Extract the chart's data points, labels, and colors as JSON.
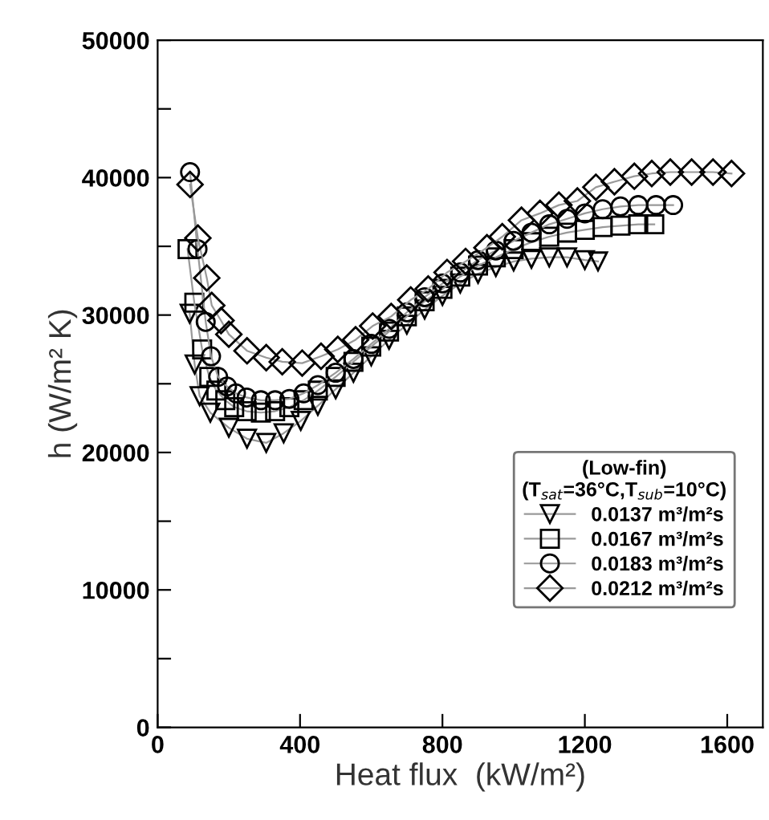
{
  "chart_data": {
    "type": "line",
    "xlabel": "Heat flux  (kW/m²)",
    "ylabel": "h (W/m² K)",
    "legend_title": "(Low-fin)\n(T$_{sat}$=36°C,T$_{sub}$=10°C)",
    "legend": "bottom right",
    "grid": false,
    "line_style": "solid",
    "xlim": [
      0,
      1700
    ],
    "xticks": [
      0,
      400,
      800,
      1200,
      1600
    ],
    "ylim": [
      0,
      50000
    ],
    "yticks": [
      0,
      {
        "value": 5000,
        "label": null
      },
      10000,
      {
        "value": 15000,
        "label": null
      },
      20000,
      {
        "value": 25000,
        "label": null
      },
      30000,
      {
        "value": 35000,
        "label": null
      },
      40000,
      {
        "value": 45000,
        "label": null
      },
      50000
    ],
    "series": [
      {
        "name": "0.0137 m³/m²s",
        "color": "#000000",
        "marker": "triangle",
        "x": [
          90,
          104,
          118,
          148,
          200,
          251,
          305,
          354,
          402,
          450,
          500,
          550,
          600,
          650,
          700,
          750,
          800,
          850,
          900,
          950,
          1000,
          1050,
          1100,
          1150,
          1200,
          1237
        ],
        "values": [
          30100,
          26400,
          24100,
          22900,
          21800,
          21000,
          20700,
          21400,
          22300,
          23400,
          24600,
          25800,
          27000,
          28200,
          29300,
          30400,
          31400,
          32300,
          33000,
          33500,
          33900,
          34100,
          34200,
          34200,
          34000,
          33900
        ]
      },
      {
        "name": "0.0167 m³/m²s",
        "color": "#000000",
        "marker": "square",
        "x": [
          84,
          103,
          125,
          145,
          165,
          190,
          215,
          250,
          290,
          330,
          370,
          410,
          450,
          500,
          550,
          600,
          650,
          700,
          750,
          800,
          850,
          900,
          950,
          1000,
          1050,
          1100,
          1150,
          1200,
          1250,
          1300,
          1350,
          1395
        ],
        "values": [
          34800,
          30900,
          27500,
          25500,
          24500,
          23800,
          23300,
          23000,
          22900,
          23000,
          23300,
          23800,
          24500,
          25500,
          26600,
          27700,
          28800,
          29900,
          31000,
          31900,
          32800,
          33600,
          34200,
          34800,
          35300,
          35700,
          36000,
          36200,
          36400,
          36500,
          36600,
          36600
        ]
      },
      {
        "name": "0.0183 m³/m²s",
        "color": "#000000",
        "marker": "circle",
        "x": [
          91,
          112,
          135,
          150,
          170,
          195,
          220,
          250,
          290,
          330,
          370,
          410,
          450,
          500,
          550,
          600,
          650,
          700,
          750,
          800,
          850,
          900,
          950,
          1000,
          1050,
          1100,
          1150,
          1200,
          1250,
          1300,
          1350,
          1400,
          1448
        ],
        "values": [
          40400,
          34800,
          29500,
          27000,
          25500,
          24800,
          24300,
          24000,
          23800,
          23800,
          23900,
          24300,
          24900,
          25800,
          26800,
          27900,
          29000,
          30200,
          31300,
          32300,
          33100,
          34000,
          34700,
          35400,
          36000,
          36600,
          37000,
          37400,
          37700,
          37900,
          38000,
          38000,
          38000
        ]
      },
      {
        "name": "0.0212 m³/m²s",
        "color": "#000000",
        "marker": "diamond",
        "x": [
          91,
          113,
          138,
          152,
          178,
          200,
          251,
          305,
          350,
          406,
          459,
          506,
          556,
          604,
          656,
          711,
          760,
          813,
          865,
          925,
          968,
          1022,
          1074,
          1127,
          1179,
          1231,
          1283,
          1339,
          1388,
          1440,
          1500,
          1560,
          1612
        ],
        "values": [
          39500,
          35600,
          32700,
          30700,
          29600,
          28600,
          27400,
          26900,
          26600,
          26500,
          27000,
          27500,
          28200,
          29200,
          29900,
          31100,
          31900,
          33100,
          33900,
          34900,
          35700,
          36900,
          37400,
          38000,
          38300,
          39300,
          39700,
          40100,
          40300,
          40400,
          40400,
          40400,
          40300
        ]
      }
    ]
  }
}
